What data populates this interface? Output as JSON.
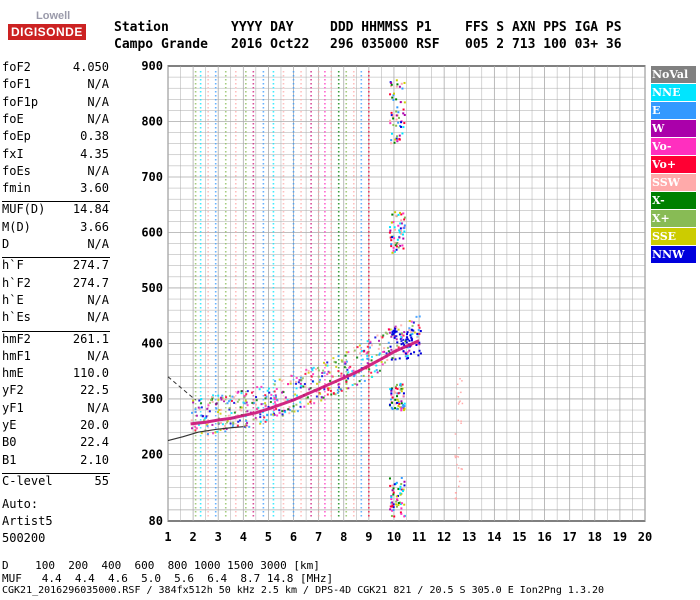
{
  "logo": {
    "top": "Lowell",
    "main": "DIGISONDE"
  },
  "header": {
    "row1": [
      {
        "text": "Station",
        "x": 114
      },
      {
        "text": "YYYY DAY",
        "x": 231
      },
      {
        "text": "DDD HHMMSS P1",
        "x": 330
      },
      {
        "text": "FFS S AXN PPS IGA PS",
        "x": 465
      }
    ],
    "row2": [
      {
        "text": "Campo Grande",
        "x": 114
      },
      {
        "text": "2016 Oct22",
        "x": 231
      },
      {
        "text": "296 035000 RSF",
        "x": 330
      },
      {
        "text": "005 2 713 100 03+ 36",
        "x": 465
      }
    ]
  },
  "params": [
    {
      "label": "foF2",
      "value": "4.050"
    },
    {
      "label": "foF1",
      "value": "N/A"
    },
    {
      "label": "foF1p",
      "value": "N/A"
    },
    {
      "label": "foE",
      "value": "N/A"
    },
    {
      "label": "foEp",
      "value": "0.38"
    },
    {
      "label": "fxI",
      "value": "4.35"
    },
    {
      "label": "foEs",
      "value": "N/A"
    },
    {
      "label": "fmin",
      "value": "3.60"
    },
    {
      "label": "MUF(D)",
      "value": "14.84"
    },
    {
      "label": "M(D)",
      "value": "3.66"
    },
    {
      "label": "D",
      "value": "N/A"
    },
    {
      "label": "h`F",
      "value": "274.7"
    },
    {
      "label": "h`F2",
      "value": "274.7"
    },
    {
      "label": "h`E",
      "value": "N/A"
    },
    {
      "label": "h`Es",
      "value": "N/A"
    },
    {
      "label": "hmF2",
      "value": "261.1"
    },
    {
      "label": "hmF1",
      "value": "N/A"
    },
    {
      "label": "hmE",
      "value": "110.0"
    },
    {
      "label": "yF2",
      "value": "22.5"
    },
    {
      "label": "yF1",
      "value": "N/A"
    },
    {
      "label": "yE",
      "value": "20.0"
    },
    {
      "label": "B0",
      "value": "22.4"
    },
    {
      "label": "B1",
      "value": "2.10"
    },
    {
      "label": "C-level",
      "value": "55"
    }
  ],
  "auto": [
    "Auto:",
    "Artist5",
    "500200"
  ],
  "legend": [
    {
      "label": "NoVal",
      "color": "#808080"
    },
    {
      "label": "NNE",
      "color": "#00e5ff"
    },
    {
      "label": "E",
      "color": "#3399ff"
    },
    {
      "label": "W",
      "color": "#aa00aa"
    },
    {
      "label": "Vo-",
      "color": "#ff2fbf"
    },
    {
      "label": "Vo+",
      "color": "#ff0033"
    },
    {
      "label": "SSW",
      "color": "#ffaaaa"
    },
    {
      "label": "X-",
      "color": "#008000"
    },
    {
      "label": "X+",
      "color": "#88bb55"
    },
    {
      "label": "SSE",
      "color": "#cccc00"
    },
    {
      "label": "NNW",
      "color": "#0000dd"
    }
  ],
  "bottom": {
    "d_row": "D    100  200  400  600  800 1000 1500 3000 [km]",
    "muf_row": "MUF   4.4  4.4  4.6  5.0  5.6  6.4  8.7 14.8 [MHz]"
  },
  "footer": "CGK21_2016296035000.RSF / 384fx512h 50 kHz 2.5 km / DPS-4D CGK21 821 / 20.5 S 305.0 E Ion2Png 1.3.20",
  "chart_data": {
    "type": "scatter",
    "title": "",
    "xlabel": "",
    "ylabel": "",
    "xlim": [
      1,
      20
    ],
    "ylim": [
      80,
      900
    ],
    "x_ticks": [
      1,
      2,
      3,
      4,
      5,
      6,
      7,
      8,
      9,
      10,
      11,
      12,
      13,
      14,
      15,
      16,
      17,
      18,
      19,
      20
    ],
    "y_ticks": [
      80,
      200,
      300,
      400,
      500,
      600,
      700,
      800,
      900
    ],
    "grid": true,
    "legend_position": "right",
    "trace": {
      "name": "",
      "color": "#cc1177",
      "x": [
        1.9,
        2.5,
        3.0,
        3.5,
        4.0,
        4.5,
        5.0,
        5.5,
        6.0,
        6.5,
        7.0,
        7.5,
        8.0,
        8.5,
        9.0,
        9.5,
        10.0,
        10.5,
        11.0
      ],
      "y": [
        255,
        258,
        262,
        265,
        270,
        275,
        282,
        290,
        298,
        308,
        318,
        328,
        338,
        348,
        360,
        372,
        385,
        395,
        405
      ]
    },
    "profile_curve": {
      "name": "",
      "color": "#333333",
      "x": [
        1.0,
        1.6,
        2.2,
        2.9,
        3.5,
        4.0
      ],
      "y": [
        225,
        232,
        240,
        245,
        248,
        250
      ]
    }
  }
}
